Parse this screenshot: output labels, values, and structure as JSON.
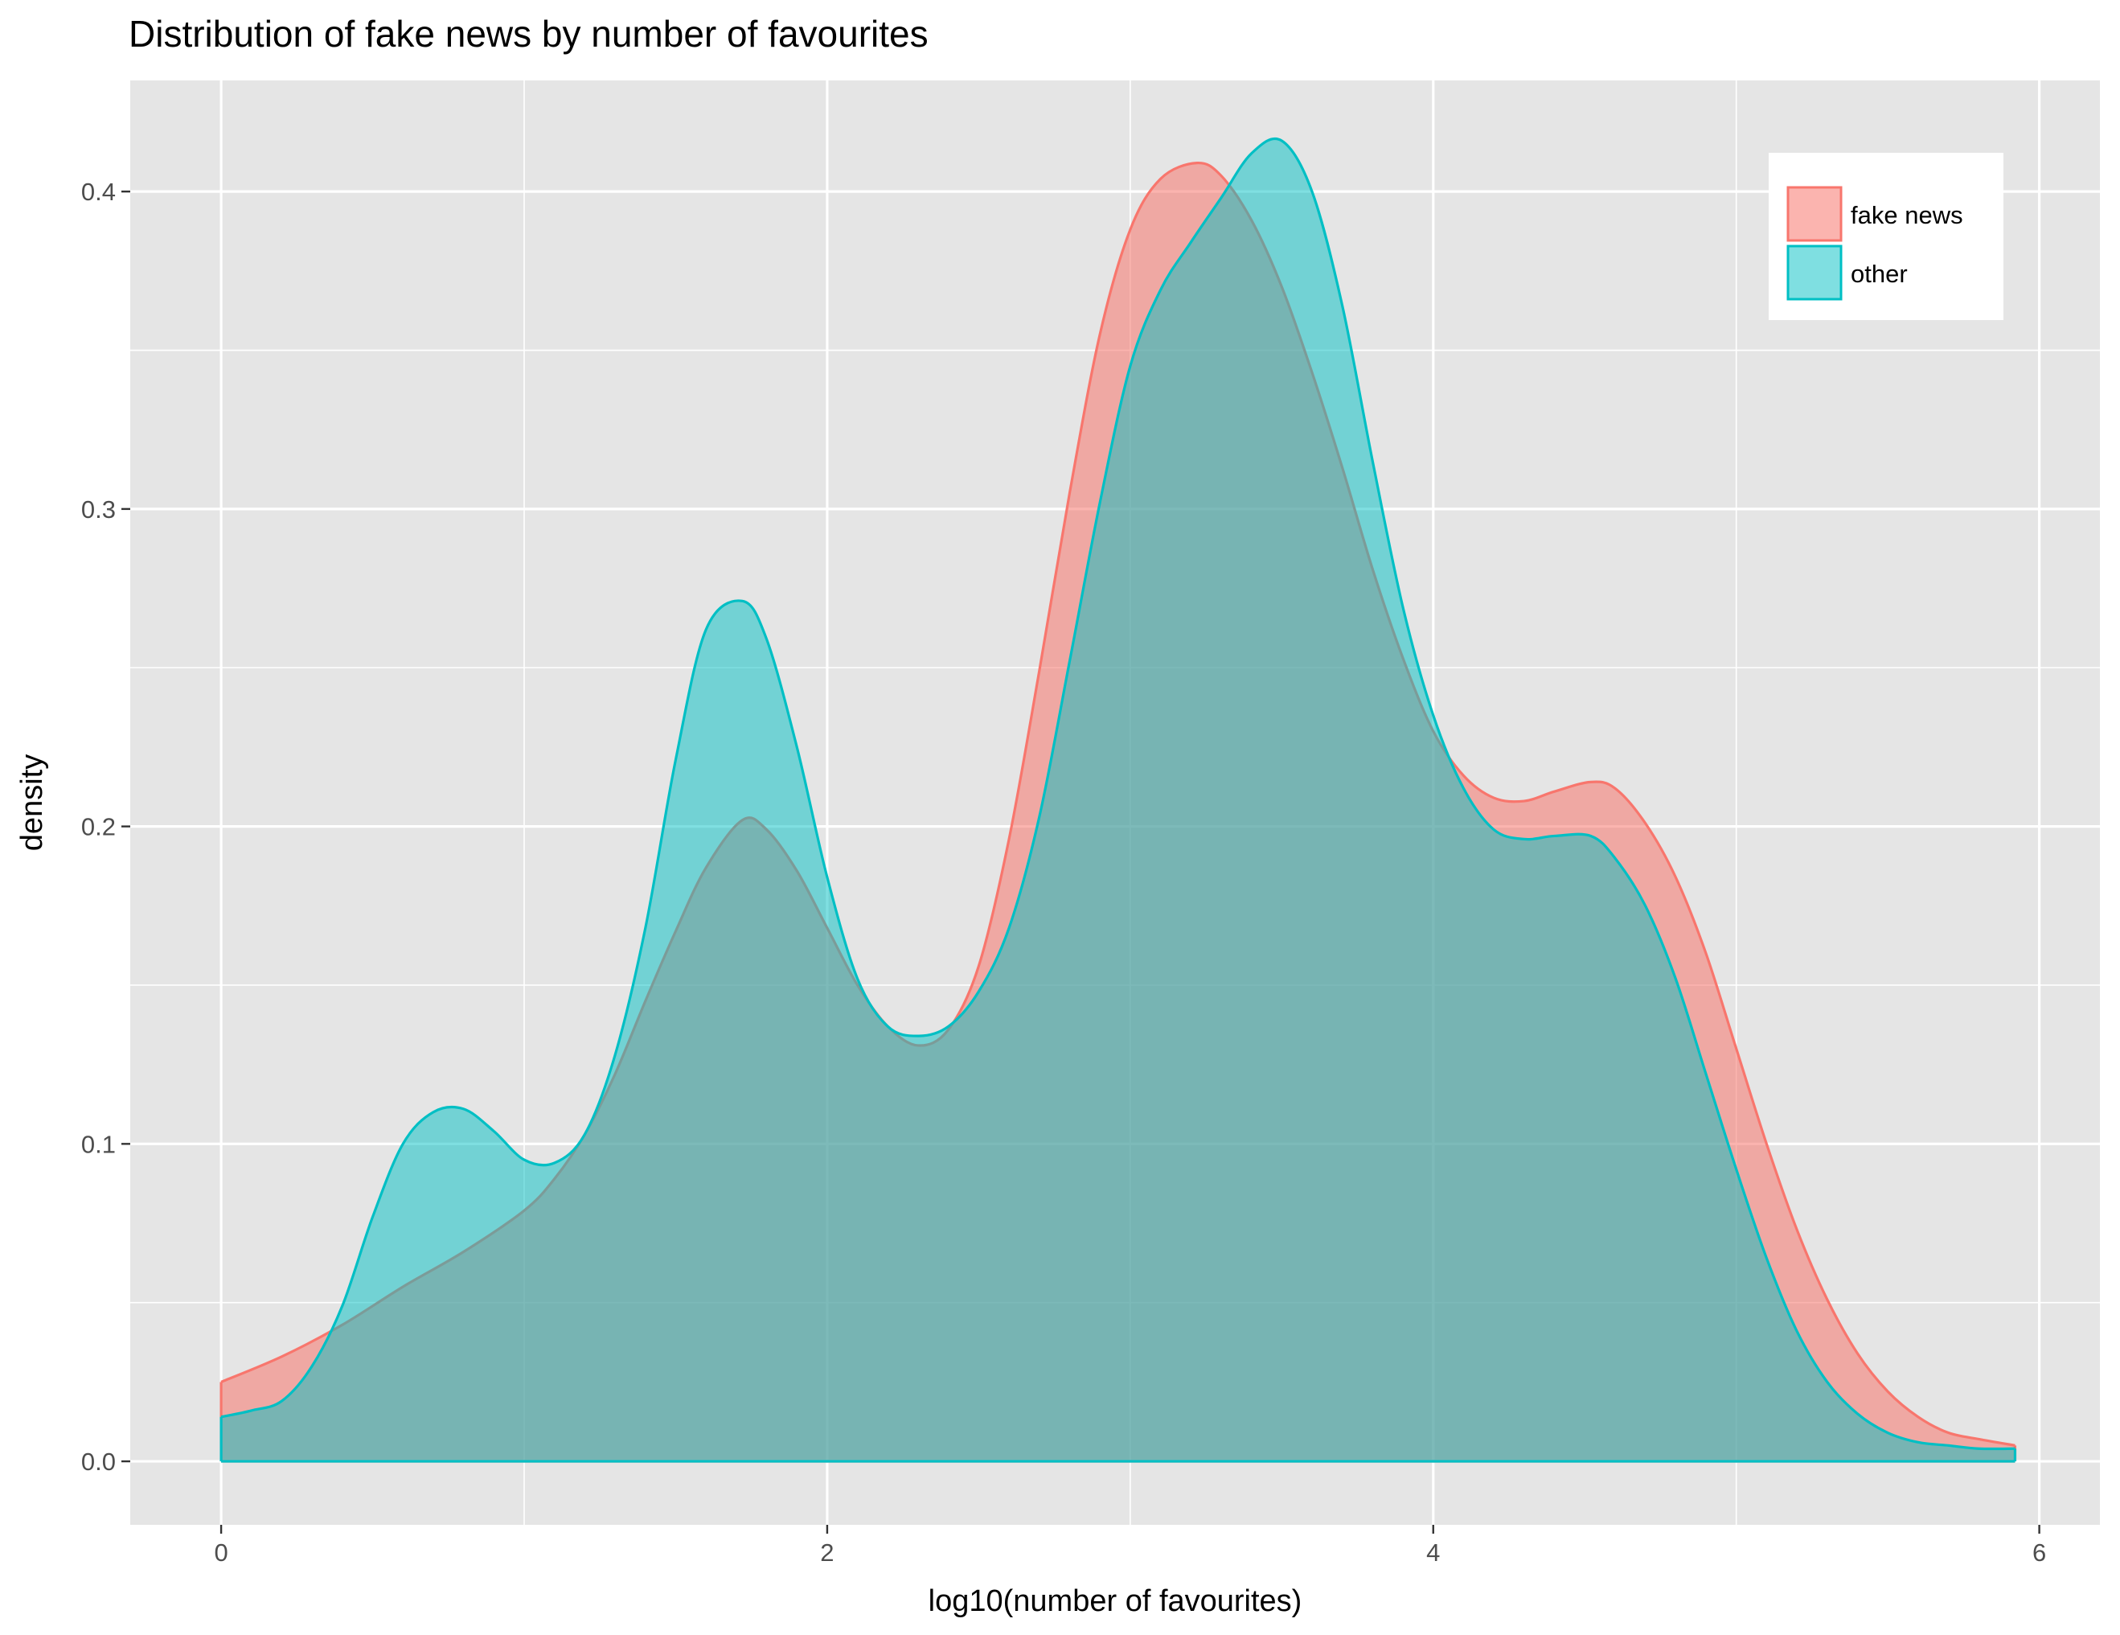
{
  "chart_data": {
    "type": "area",
    "title": "Distribution of fake news by number of favourites",
    "xlabel": "log10(number of favourites)",
    "ylabel": "density",
    "xlim": [
      -0.3,
      6.2
    ],
    "ylim": [
      -0.02,
      0.435
    ],
    "x_ticks": [
      0,
      2,
      4,
      6
    ],
    "x_tick_labels": [
      "0",
      "2",
      "4",
      "6"
    ],
    "y_ticks": [
      0.0,
      0.1,
      0.2,
      0.3,
      0.4
    ],
    "y_tick_labels": [
      "0.0",
      "0.1",
      "0.2",
      "0.3",
      "0.4"
    ],
    "grid": true,
    "legend_position": "top-right",
    "colors": {
      "panel_background": "#e5e5e5",
      "grid": "#ffffff"
    },
    "series": [
      {
        "name": "fake news",
        "color": "#f8766d",
        "fill_opacity": 0.55,
        "x": [
          0,
          0.2,
          0.4,
          0.6,
          0.8,
          1.0,
          1.1,
          1.2,
          1.3,
          1.4,
          1.5,
          1.6,
          1.72,
          1.8,
          1.9,
          2.0,
          2.1,
          2.2,
          2.3,
          2.4,
          2.5,
          2.6,
          2.7,
          2.8,
          2.9,
          3.0,
          3.1,
          3.22,
          3.3,
          3.4,
          3.5,
          3.6,
          3.7,
          3.8,
          3.9,
          4.0,
          4.1,
          4.2,
          4.3,
          4.4,
          4.52,
          4.6,
          4.7,
          4.8,
          4.9,
          5.0,
          5.1,
          5.2,
          5.3,
          5.4,
          5.5,
          5.6,
          5.7,
          5.8,
          5.92
        ],
        "y": [
          0.025,
          0.033,
          0.043,
          0.055,
          0.066,
          0.079,
          0.089,
          0.103,
          0.122,
          0.145,
          0.167,
          0.187,
          0.202,
          0.199,
          0.186,
          0.168,
          0.15,
          0.137,
          0.131,
          0.136,
          0.156,
          0.196,
          0.249,
          0.305,
          0.355,
          0.388,
          0.404,
          0.409,
          0.405,
          0.391,
          0.37,
          0.343,
          0.313,
          0.281,
          0.253,
          0.23,
          0.216,
          0.209,
          0.208,
          0.211,
          0.214,
          0.212,
          0.201,
          0.184,
          0.16,
          0.13,
          0.1,
          0.073,
          0.051,
          0.034,
          0.022,
          0.014,
          0.009,
          0.007,
          0.005
        ]
      },
      {
        "name": "other",
        "color": "#00bfc4",
        "fill_opacity": 0.5,
        "x": [
          0,
          0.1,
          0.2,
          0.3,
          0.4,
          0.5,
          0.6,
          0.7,
          0.8,
          0.9,
          1.0,
          1.1,
          1.2,
          1.3,
          1.4,
          1.5,
          1.6,
          1.72,
          1.8,
          1.9,
          2.0,
          2.1,
          2.2,
          2.3,
          2.4,
          2.5,
          2.6,
          2.7,
          2.8,
          2.9,
          3.0,
          3.1,
          3.2,
          3.3,
          3.4,
          3.5,
          3.6,
          3.7,
          3.8,
          3.9,
          4.0,
          4.1,
          4.2,
          4.3,
          4.4,
          4.52,
          4.6,
          4.7,
          4.8,
          4.9,
          5.0,
          5.1,
          5.2,
          5.3,
          5.4,
          5.5,
          5.6,
          5.7,
          5.8,
          5.92
        ],
        "y": [
          0.014,
          0.016,
          0.019,
          0.03,
          0.049,
          0.077,
          0.1,
          0.11,
          0.111,
          0.104,
          0.095,
          0.094,
          0.103,
          0.128,
          0.168,
          0.221,
          0.262,
          0.271,
          0.259,
          0.225,
          0.184,
          0.152,
          0.137,
          0.134,
          0.137,
          0.148,
          0.168,
          0.203,
          0.252,
          0.302,
          0.345,
          0.369,
          0.384,
          0.398,
          0.412,
          0.416,
          0.4,
          0.364,
          0.315,
          0.269,
          0.235,
          0.212,
          0.199,
          0.196,
          0.197,
          0.197,
          0.19,
          0.175,
          0.152,
          0.122,
          0.092,
          0.064,
          0.041,
          0.025,
          0.015,
          0.009,
          0.006,
          0.005,
          0.004,
          0.004
        ]
      }
    ]
  }
}
